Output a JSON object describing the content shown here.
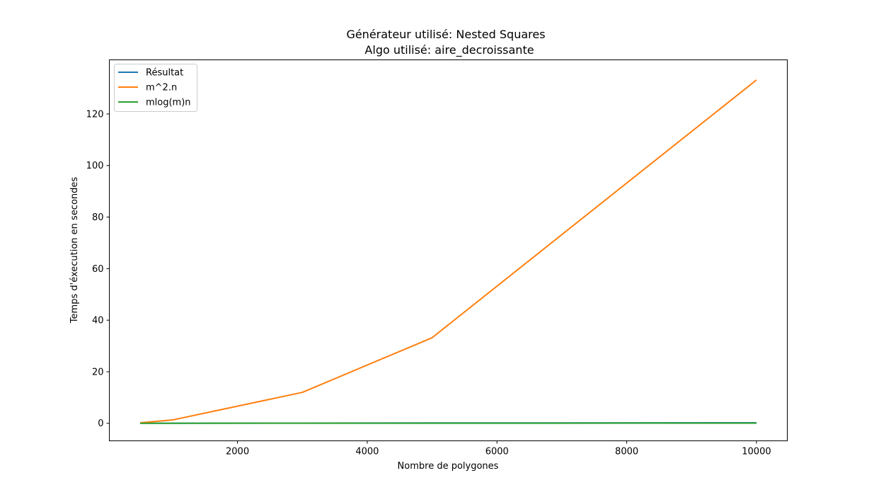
{
  "chart_data": {
    "type": "line",
    "title": "Générateur utilisé: Nested Squares",
    "subtitle": "Algo utilisé: aire_decroissante",
    "xlabel": "Nombre de polygones",
    "ylabel": "Temps d'éxecution en secondes",
    "xlim": [
      25,
      10475
    ],
    "ylim": [
      -6.8,
      141.0
    ],
    "xticks": [
      2000,
      4000,
      6000,
      8000,
      10000
    ],
    "yticks": [
      0,
      20,
      40,
      60,
      80,
      100,
      120
    ],
    "legend_position": "top-left",
    "grid": false,
    "series": [
      {
        "name": "Résultat",
        "color": "#1f77b4",
        "x": [
          500,
          1000,
          3000,
          5000,
          10000
        ],
        "y": [
          0.02,
          0.04,
          0.08,
          0.12,
          0.2
        ]
      },
      {
        "name": "m^2.n",
        "color": "#ff7f0e",
        "x": [
          500,
          1000,
          3000,
          5000,
          10000
        ],
        "y": [
          0.2,
          1.3,
          12.0,
          33.2,
          133.2
        ]
      },
      {
        "name": "mlog(m)n",
        "color": "#2ca02c",
        "x": [
          500,
          1000,
          3000,
          5000,
          10000
        ],
        "y": [
          0.0,
          0.01,
          0.02,
          0.03,
          0.07
        ]
      }
    ]
  }
}
